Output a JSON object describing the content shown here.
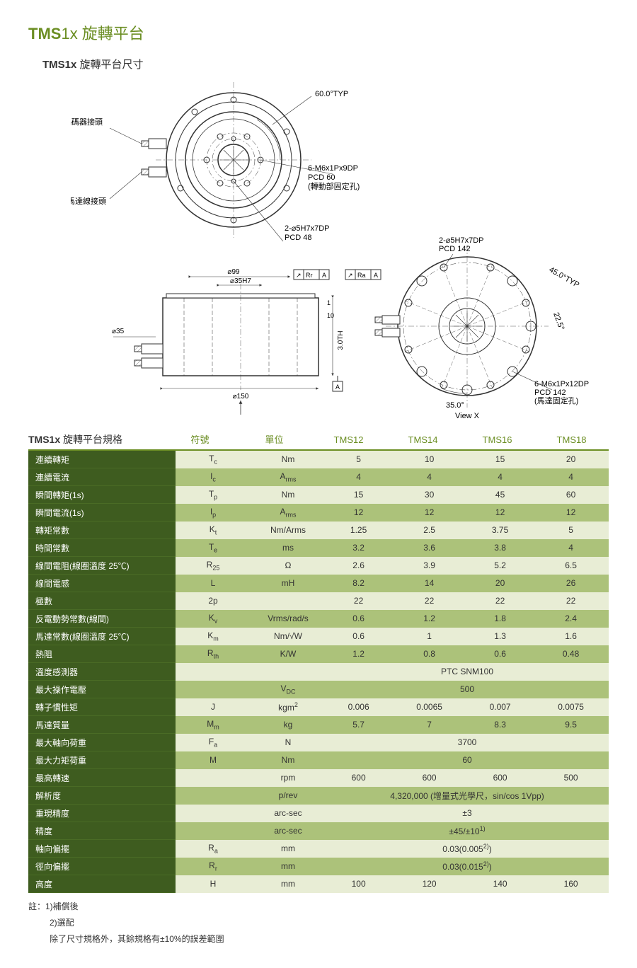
{
  "title_prefix": "TMS",
  "title_suffix": "1x 旋轉平台",
  "subtitle_prefix": "TMS1x",
  "subtitle_suffix": "  旋轉平台尺寸",
  "spec_title_prefix": "TMS1x",
  "spec_title_suffix": "  旋轉平台規格",
  "header_cols": [
    "符號",
    "單位",
    "TMS12",
    "TMS14",
    "TMS16",
    "TMS18"
  ],
  "colors": {
    "accent": "#6b8e23",
    "row_label_bg": "#3e5c1f",
    "band_even": "#e8edd5",
    "band_odd": "#acc27a"
  },
  "diagram": {
    "labels": {
      "encoder": "編碼器接頭",
      "motor_conn": "馬達線接頭",
      "angle60": "60.0°TYP",
      "angle45": "45.0°TYP",
      "angle22_5": "22.5°",
      "angle35": "35.0°",
      "hole1a": "6-M6x1Px9DP",
      "hole1b": "PCD 60",
      "hole1c": "(轉動部固定孔)",
      "hole2a": "2-⌀5H7x7DP",
      "hole2b": "PCD 48",
      "hole3a": "2-⌀5H7x7DP",
      "hole3b": "PCD 142",
      "hole4a": "6-M6x1Px12DP",
      "hole4b": "PCD 142",
      "hole4c": "(馬達固定孔)",
      "d99": "⌀99",
      "d35h7": "⌀35H7",
      "d35": "⌀35",
      "d150": "⌀150",
      "h3": "3.0TH",
      "ten": "10",
      "one": "1",
      "rr": "Rr",
      "ra": "Ra",
      "a": "A",
      "x": "X",
      "viewx": "View X"
    }
  },
  "rows": [
    {
      "label": "連續轉矩",
      "sym": "T<sub class='sub'>c</sub>",
      "unit": "Nm",
      "v": [
        "5",
        "10",
        "15",
        "20"
      ]
    },
    {
      "label": "連續電流",
      "sym": "I<sub class='sub'>c</sub>",
      "unit": "A<sub class='sub'>rms</sub>",
      "v": [
        "4",
        "4",
        "4",
        "4"
      ]
    },
    {
      "label": "瞬間轉矩(1s)",
      "sym": "T<sub class='sub'>p</sub>",
      "unit": "Nm",
      "v": [
        "15",
        "30",
        "45",
        "60"
      ]
    },
    {
      "label": "瞬間電流(1s)",
      "sym": "I<sub class='sub'>p</sub>",
      "unit": "A<sub class='sub'>rms</sub>",
      "v": [
        "12",
        "12",
        "12",
        "12"
      ]
    },
    {
      "label": "轉矩常數",
      "sym": "K<sub class='sub'>t</sub>",
      "unit": "Nm/Arms",
      "v": [
        "1.25",
        "2.5",
        "3.75",
        "5"
      ]
    },
    {
      "label": "時間常數",
      "sym": "T<sub class='sub'>e</sub>",
      "unit": "ms",
      "v": [
        "3.2",
        "3.6",
        "3.8",
        "4"
      ]
    },
    {
      "label": "線間電阻(線圈溫度 25℃)",
      "sym": "R<sub class='sub'>25</sub>",
      "unit": "Ω",
      "v": [
        "2.6",
        "3.9",
        "5.2",
        "6.5"
      ]
    },
    {
      "label": "線間電感",
      "sym": "L",
      "unit": "mH",
      "v": [
        "8.2",
        "14",
        "20",
        "26"
      ]
    },
    {
      "label": "極數",
      "sym": "2p",
      "unit": "",
      "v": [
        "22",
        "22",
        "22",
        "22"
      ]
    },
    {
      "label": "反電動勢常數(線間)",
      "sym": "K<sub class='sub'>v</sub>",
      "unit": "Vrms/rad/s",
      "v": [
        "0.6",
        "1.2",
        "1.8",
        "2.4"
      ]
    },
    {
      "label": "馬達常數(線圈溫度 25℃)",
      "sym": "K<sub class='sub'>m</sub>",
      "unit": "Nm/√W",
      "v": [
        "0.6",
        "1",
        "1.3",
        "1.6"
      ]
    },
    {
      "label": "熱阻",
      "sym": "R<sub class='sub'>th</sub>",
      "unit": "K/W",
      "v": [
        "1.2",
        "0.8",
        "0.6",
        "0.48"
      ]
    },
    {
      "label": "溫度感測器",
      "sym": "",
      "unit": "",
      "span": "PTC SNM100"
    },
    {
      "label": "最大操作電壓",
      "sym": "",
      "unit": "V<sub class='sub'>DC</sub>",
      "span": "500"
    },
    {
      "label": "轉子慣性矩",
      "sym": "J",
      "unit": "kgm<sup class='sup'>2</sup>",
      "v": [
        "0.006",
        "0.0065",
        "0.007",
        "0.0075"
      ]
    },
    {
      "label": "馬達質量",
      "sym": "M<sub class='sub'>m</sub>",
      "unit": "kg",
      "v": [
        "5.7",
        "7",
        "8.3",
        "9.5"
      ]
    },
    {
      "label": "最大軸向荷重",
      "sym": "F<sub class='sub'>a</sub>",
      "unit": "N",
      "span": "3700"
    },
    {
      "label": "最大力矩荷重",
      "sym": "M",
      "unit": "Nm",
      "span": "60"
    },
    {
      "label": "最高轉速",
      "sym": "",
      "unit": "rpm",
      "v": [
        "600",
        "600",
        "600",
        "500"
      ]
    },
    {
      "label": "解析度",
      "sym": "",
      "unit": "p/rev",
      "span": "4,320,000 (增量式光學尺，sin/cos 1Vpp)"
    },
    {
      "label": "重現精度",
      "sym": "",
      "unit": "arc-sec",
      "span": "±3"
    },
    {
      "label": "精度",
      "sym": "",
      "unit": "arc-sec",
      "span": "±45/±10<sup class='sup'>1)</sup>"
    },
    {
      "label": "軸向偏擺",
      "sym": "R<sub class='sub'>a</sub>",
      "unit": "mm",
      "span": "0.03(0.005<sup class='sup'>2)</sup>)"
    },
    {
      "label": "徑向偏擺",
      "sym": "R<sub class='sub'>r</sub>",
      "unit": "mm",
      "span": "0.03(0.015<sup class='sup'>2)</sup>)"
    },
    {
      "label": "高度",
      "sym": "H",
      "unit": "mm",
      "v": [
        "100",
        "120",
        "140",
        "160"
      ]
    }
  ],
  "notes": {
    "n1": "註：1)補償後",
    "n2": "2)選配",
    "n3": "除了尺寸規格外，其餘規格有±10%的誤差範圍"
  }
}
